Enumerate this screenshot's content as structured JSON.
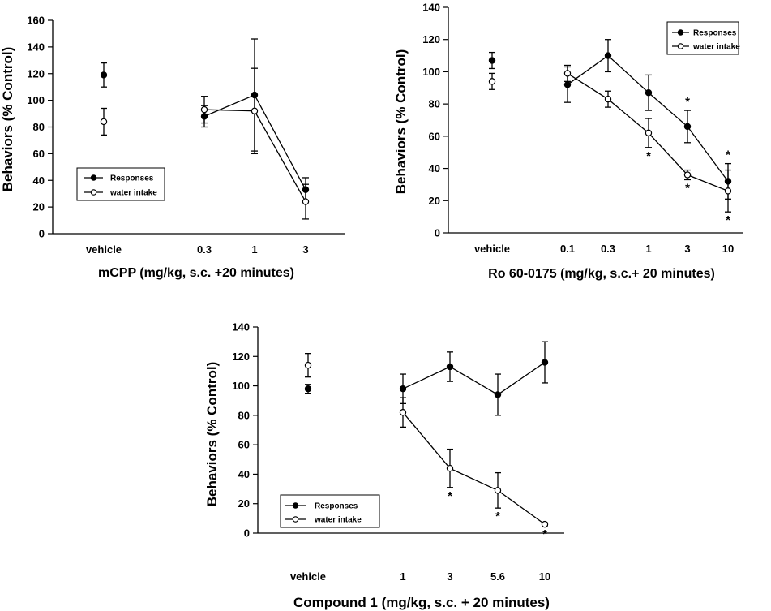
{
  "chart_data": [
    {
      "type": "line",
      "id": "mcpp",
      "xlabel": "mCPP (mg/kg, s.c. +20 minutes)",
      "ylabel": "Behaviors (% Control)",
      "ylim": [
        0,
        160
      ],
      "yticks": [
        0,
        20,
        40,
        60,
        80,
        100,
        120,
        140,
        160
      ],
      "categories": [
        "vehicle",
        "0.3",
        "1",
        "3"
      ],
      "legend": "bottom-left",
      "series": [
        {
          "name": "Responses",
          "marker": "filled",
          "values": [
            119,
            88,
            104,
            33
          ],
          "errors": [
            9,
            8,
            42,
            9
          ],
          "stars": [
            false,
            false,
            false,
            false
          ]
        },
        {
          "name": "water intake",
          "marker": "open",
          "values": [
            84,
            93,
            92,
            24
          ],
          "errors": [
            10,
            10,
            32,
            13
          ],
          "stars": [
            false,
            false,
            false,
            false
          ]
        }
      ]
    },
    {
      "type": "line",
      "id": "ro600175",
      "xlabel": "Ro 60-0175 (mg/kg, s.c.+ 20 minutes)",
      "ylabel": "Behaviors (% Control)",
      "ylim": [
        0,
        140
      ],
      "yticks": [
        0,
        20,
        40,
        60,
        80,
        100,
        120,
        140
      ],
      "categories": [
        "vehicle",
        "0.1",
        "0.3",
        "1",
        "3",
        "10"
      ],
      "legend": "top-right",
      "series": [
        {
          "name": "Responses",
          "marker": "filled",
          "values": [
            107,
            92,
            110,
            87,
            66,
            32
          ],
          "errors": [
            5,
            11,
            10,
            11,
            10,
            11
          ],
          "stars": [
            false,
            false,
            false,
            false,
            true,
            true
          ]
        },
        {
          "name": "water intake",
          "marker": "open",
          "values": [
            94,
            99,
            83,
            62,
            36,
            26
          ],
          "errors": [
            5,
            5,
            5,
            9,
            3,
            13
          ],
          "stars": [
            false,
            false,
            false,
            true,
            true,
            true
          ]
        }
      ]
    },
    {
      "type": "line",
      "id": "compound1",
      "xlabel": "Compound 1 (mg/kg, s.c. + 20 minutes)",
      "ylabel": "Behaviors (% Control)",
      "ylim": [
        0,
        140
      ],
      "yticks": [
        0,
        20,
        40,
        60,
        80,
        100,
        120,
        140
      ],
      "categories": [
        "vehicle",
        "1",
        "3",
        "5.6",
        "10"
      ],
      "legend": "bottom-left",
      "series": [
        {
          "name": "Responses",
          "marker": "filled",
          "values": [
            98,
            98,
            113,
            94,
            116
          ],
          "errors": [
            3,
            10,
            10,
            14,
            14
          ],
          "stars": [
            false,
            false,
            false,
            false,
            false
          ]
        },
        {
          "name": "water intake",
          "marker": "open",
          "values": [
            114,
            82,
            44,
            29,
            6
          ],
          "errors": [
            8,
            10,
            13,
            12,
            1
          ],
          "stars": [
            false,
            false,
            true,
            true,
            true
          ]
        }
      ]
    }
  ]
}
